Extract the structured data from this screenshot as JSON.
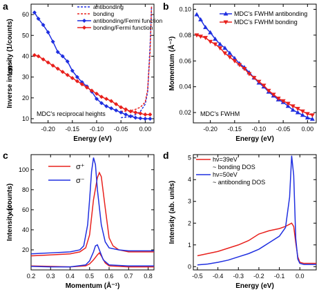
{
  "colors": {
    "antibonding": "#1f2fe0",
    "bonding": "#e8201c",
    "axis": "#000000"
  },
  "chart_data": [
    {
      "panel": "a",
      "type": "line",
      "xlabel": "Energy (eV)",
      "ylabel": "Inverse intensity (1/counts)",
      "y_multiplier": "x10⁻⁶",
      "annotation": "MDC's reciprocal heights",
      "xlim": [
        -0.235,
        0.018
      ],
      "ylim": [
        8,
        65
      ],
      "xticks": [
        -0.2,
        -0.15,
        -0.1,
        -0.05,
        0.0
      ],
      "xtick_labels": [
        "-0.20",
        "-0.15",
        "-0.10",
        "-0.05",
        "0.00"
      ],
      "yticks": [
        10,
        20,
        30,
        40,
        50,
        60
      ],
      "ytick_labels": [
        "10",
        "20",
        "30",
        "40",
        "50",
        "60"
      ],
      "legend_position": "top-right",
      "series": [
        {
          "name": "antibonding",
          "style": "dashed",
          "color": "antibonding",
          "x": [
            -0.05,
            -0.03,
            -0.02,
            -0.01,
            0.0,
            0.005,
            0.01,
            0.013
          ],
          "y": [
            10.5,
            11.0,
            12.0,
            13.5,
            17.0,
            23.0,
            45.0,
            64.0
          ]
        },
        {
          "name": "bonding",
          "style": "dashed",
          "color": "bonding",
          "x": [
            -0.05,
            -0.03,
            -0.02,
            -0.01,
            0.0,
            0.005,
            0.01,
            0.013
          ],
          "y": [
            13.5,
            13.8,
            14.5,
            15.5,
            18.0,
            24.0,
            42.0,
            64.0
          ]
        },
        {
          "name": "antibonding/Fermi function",
          "style": "markers",
          "marker": "diamond",
          "color": "antibonding",
          "x": [
            -0.228,
            -0.22,
            -0.21,
            -0.2,
            -0.19,
            -0.18,
            -0.17,
            -0.16,
            -0.15,
            -0.14,
            -0.13,
            -0.12,
            -0.11,
            -0.1,
            -0.09,
            -0.08,
            -0.07,
            -0.06,
            -0.05,
            -0.04,
            -0.03,
            -0.02,
            -0.01,
            0.0,
            0.01
          ],
          "y": [
            61,
            58,
            55,
            51.5,
            47,
            42,
            40,
            37.5,
            33,
            30,
            27.5,
            25.5,
            23,
            19.5,
            17.5,
            16,
            15,
            14,
            13,
            12,
            11.2,
            10.5,
            10.2,
            10,
            10
          ]
        },
        {
          "name": "bonding/Fermi function",
          "style": "markers",
          "marker": "diamond",
          "color": "bonding",
          "x": [
            -0.228,
            -0.22,
            -0.21,
            -0.2,
            -0.19,
            -0.18,
            -0.17,
            -0.16,
            -0.15,
            -0.14,
            -0.13,
            -0.12,
            -0.11,
            -0.1,
            -0.09,
            -0.08,
            -0.07,
            -0.06,
            -0.05,
            -0.04,
            -0.03,
            -0.02,
            -0.01,
            0.0,
            0.01
          ],
          "y": [
            40.5,
            40,
            38.5,
            37,
            35.5,
            34,
            32.5,
            31,
            29.5,
            28,
            26.5,
            25,
            23.5,
            22,
            20.5,
            19.5,
            18.5,
            17,
            15.5,
            14.5,
            13.5,
            13,
            12.5,
            12,
            12
          ]
        }
      ]
    },
    {
      "panel": "b",
      "type": "line",
      "xlabel": "Energy (eV)",
      "ylabel": "Momentum (Å⁻¹)",
      "annotation": "MDC's FWHM",
      "xlim": [
        -0.235,
        0.018
      ],
      "ylim": [
        0.012,
        0.104
      ],
      "xticks": [
        -0.2,
        -0.15,
        -0.1,
        -0.05,
        0.0
      ],
      "xtick_labels": [
        "-0.20",
        "-0.15",
        "-0.10",
        "-0.05",
        "0.00"
      ],
      "yticks": [
        0.02,
        0.04,
        0.06,
        0.08,
        0.1
      ],
      "ytick_labels": [
        "0.02",
        "0.04",
        "0.06",
        "0.08",
        "0.10"
      ],
      "legend_position": "top-right",
      "series": [
        {
          "name": "MDC's FWHM antibonding",
          "marker": "triangle-up",
          "color": "antibonding",
          "x": [
            -0.228,
            -0.22,
            -0.21,
            -0.2,
            -0.19,
            -0.18,
            -0.17,
            -0.16,
            -0.15,
            -0.14,
            -0.13,
            -0.12,
            -0.11,
            -0.1,
            -0.09,
            -0.08,
            -0.07,
            -0.06,
            -0.05,
            -0.04,
            -0.03,
            -0.02,
            -0.01,
            0.0,
            0.01
          ],
          "y": [
            0.096,
            0.092,
            0.086,
            0.082,
            0.077,
            0.073,
            0.07,
            0.066,
            0.062,
            0.058,
            0.055,
            0.051,
            0.047,
            0.043,
            0.04,
            0.036,
            0.033,
            0.03,
            0.028,
            0.025,
            0.022,
            0.02,
            0.018,
            0.016,
            0.015
          ]
        },
        {
          "name": "MDC's FWHM bonding",
          "marker": "triangle-down",
          "color": "bonding",
          "x": [
            -0.228,
            -0.22,
            -0.21,
            -0.2,
            -0.19,
            -0.18,
            -0.17,
            -0.16,
            -0.15,
            -0.14,
            -0.13,
            -0.12,
            -0.11,
            -0.1,
            -0.09,
            -0.08,
            -0.07,
            -0.06,
            -0.05,
            -0.04,
            -0.03,
            -0.02,
            -0.01,
            0.0,
            0.01
          ],
          "y": [
            0.08,
            0.079,
            0.078,
            0.075,
            0.073,
            0.07,
            0.066,
            0.063,
            0.06,
            0.057,
            0.054,
            0.05,
            0.047,
            0.044,
            0.041,
            0.037,
            0.034,
            0.031,
            0.029,
            0.027,
            0.025,
            0.023,
            0.021,
            0.019,
            0.018
          ]
        }
      ]
    },
    {
      "panel": "c",
      "type": "line",
      "xlabel": "Momentum (Å⁻¹)",
      "ylabel": "Intensity (counts)",
      "y_multiplier": "x10³",
      "xlim": [
        0.2,
        0.83
      ],
      "ylim": [
        0,
        115
      ],
      "xticks": [
        0.2,
        0.3,
        0.4,
        0.5,
        0.6,
        0.7,
        0.8
      ],
      "xtick_labels": [
        "0.2",
        "0.3",
        "0.4",
        "0.5",
        "0.6",
        "0.7",
        "0.8"
      ],
      "yticks": [
        20,
        40,
        60,
        80,
        100
      ],
      "ytick_labels": [
        "20",
        "40",
        "60",
        "80",
        "100"
      ],
      "legend_position": "top-left",
      "series": [
        {
          "name": "σ⁺",
          "color": "bonding",
          "x": [
            0.2,
            0.25,
            0.3,
            0.35,
            0.4,
            0.45,
            0.48,
            0.5,
            0.52,
            0.54,
            0.55,
            0.56,
            0.58,
            0.6,
            0.62,
            0.65,
            0.7,
            0.75,
            0.8,
            0.83
          ],
          "y": [
            14,
            14.5,
            15,
            15.5,
            16,
            18,
            22,
            35,
            70,
            92,
            97,
            93,
            62,
            32,
            24,
            20,
            18,
            18,
            18,
            18
          ]
        },
        {
          "name": "σ⁻",
          "color": "antibonding",
          "x": [
            0.2,
            0.25,
            0.3,
            0.35,
            0.4,
            0.45,
            0.47,
            0.49,
            0.5,
            0.51,
            0.52,
            0.53,
            0.54,
            0.56,
            0.58,
            0.6,
            0.65,
            0.7,
            0.75,
            0.8,
            0.83
          ],
          "y": [
            16,
            16.5,
            17,
            17.5,
            18,
            20,
            24,
            45,
            70,
            98,
            112,
            105,
            80,
            45,
            28,
            22,
            20,
            19,
            19,
            19,
            19
          ]
        },
        {
          "name": "",
          "color": "bonding",
          "x": [
            0.2,
            0.3,
            0.4,
            0.48,
            0.5,
            0.52,
            0.54,
            0.55,
            0.56,
            0.58,
            0.6,
            0.7,
            0.8,
            0.83
          ],
          "y": [
            4,
            3.5,
            3,
            4,
            6,
            10,
            15,
            17,
            14,
            7,
            4,
            3,
            3,
            3
          ]
        },
        {
          "name": "",
          "color": "antibonding",
          "x": [
            0.2,
            0.3,
            0.4,
            0.48,
            0.5,
            0.52,
            0.53,
            0.54,
            0.55,
            0.57,
            0.6,
            0.7,
            0.8,
            0.83
          ],
          "y": [
            3.5,
            3,
            3,
            5,
            9,
            18,
            24,
            25,
            20,
            10,
            5,
            4,
            4,
            4
          ]
        }
      ]
    },
    {
      "panel": "d",
      "type": "line",
      "xlabel": "Energy (eV)",
      "ylabel": "Intensity (ab. units)",
      "xlim": [
        -0.52,
        0.08
      ],
      "ylim": [
        -0.15,
        5.15
      ],
      "xticks": [
        -0.5,
        -0.4,
        -0.3,
        -0.2,
        -0.1,
        0.0
      ],
      "xtick_labels": [
        "-0.5",
        "-0.4",
        "-0.3",
        "-0.2",
        "-0.1",
        "0.0"
      ],
      "yticks": [
        0,
        1,
        2,
        3,
        4,
        5
      ],
      "ytick_labels": [
        "0",
        "1",
        "2",
        "3",
        "4",
        "5"
      ],
      "legend_position": "top-left",
      "series": [
        {
          "name": "hν=39eV",
          "description": "~ bonding DOS",
          "color": "bonding",
          "x": [
            -0.5,
            -0.45,
            -0.4,
            -0.35,
            -0.3,
            -0.25,
            -0.2,
            -0.15,
            -0.1,
            -0.07,
            -0.05,
            -0.04,
            -0.03,
            -0.02,
            -0.01,
            0.0,
            0.02,
            0.05,
            0.08
          ],
          "y": [
            0.5,
            0.6,
            0.7,
            0.85,
            1.0,
            1.2,
            1.5,
            1.65,
            1.75,
            1.85,
            1.95,
            2.0,
            1.85,
            1.1,
            0.45,
            0.2,
            0.15,
            0.15,
            0.15
          ]
        },
        {
          "name": "hν=50eV",
          "description": "~ antibonding DOS",
          "color": "antibonding",
          "x": [
            -0.5,
            -0.45,
            -0.4,
            -0.35,
            -0.3,
            -0.25,
            -0.2,
            -0.15,
            -0.1,
            -0.07,
            -0.05,
            -0.04,
            -0.03,
            -0.02,
            -0.01,
            0.0,
            0.02,
            0.05,
            0.08
          ],
          "y": [
            0.08,
            0.12,
            0.2,
            0.3,
            0.45,
            0.6,
            0.8,
            1.1,
            1.4,
            1.8,
            3.2,
            5.1,
            4.2,
            1.3,
            0.35,
            0.15,
            0.1,
            0.1,
            0.1
          ]
        }
      ]
    }
  ]
}
